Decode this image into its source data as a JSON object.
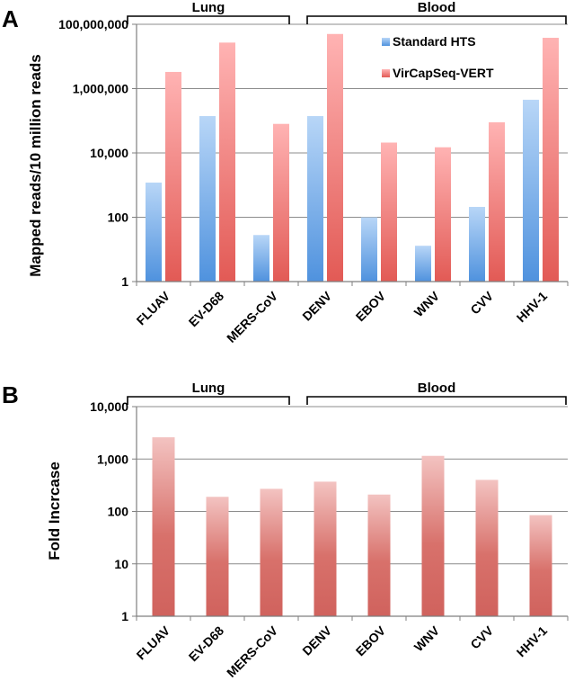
{
  "chart_data": [
    {
      "panel_label": "A",
      "type": "bar",
      "scale": "log10",
      "ylabel": "Mapped reads/10 million reads",
      "ylim": [
        1,
        100000000
      ],
      "yticks": [
        "1",
        "100",
        "10,000",
        "1,000,000",
        "100,000,000"
      ],
      "ytick_values": [
        1,
        100,
        10000,
        1000000,
        100000000
      ],
      "categories": [
        "FLUAV",
        "EV-D68",
        "MERS-CoV",
        "DENV",
        "EBOV",
        "WNV",
        "CVV",
        "HHV-1"
      ],
      "series": [
        {
          "name": "Standard HTS",
          "color": "#5b9bd5",
          "values": [
            1200,
            140000,
            28,
            140000,
            100,
            13,
            210,
            450000
          ]
        },
        {
          "name": "VirCapSeq-VERT",
          "color": "#e0605c",
          "values": [
            3300000,
            27000000,
            80000,
            50000000,
            21000,
            15000,
            90000,
            38000000
          ]
        }
      ],
      "groups": [
        {
          "label": "Lung",
          "start_category": "FLUAV",
          "end_category": "MERS-CoV"
        },
        {
          "label": "Blood",
          "start_category": "DENV",
          "end_category": "HHV-1"
        }
      ],
      "legend": "top-right"
    },
    {
      "panel_label": "B",
      "type": "bar",
      "scale": "log10",
      "ylabel": "Fold Incrcase",
      "ylim": [
        1,
        10000
      ],
      "yticks": [
        "1",
        "10",
        "100",
        "1,000",
        "10,000"
      ],
      "ytick_values": [
        1,
        10,
        100,
        1000,
        10000
      ],
      "categories": [
        "FLUAV",
        "EV-D68",
        "MERS-CoV",
        "DENV",
        "EBOV",
        "WNV",
        "CVV",
        "HHV-1"
      ],
      "series": [
        {
          "name": "Fold increase",
          "color": "#e0605c",
          "values": [
            2600,
            190,
            270,
            370,
            210,
            1150,
            400,
            85
          ]
        }
      ],
      "groups": [
        {
          "label": "Lung",
          "start_category": "FLUAV",
          "end_category": "MERS-CoV"
        },
        {
          "label": "Blood",
          "start_category": "DENV",
          "end_category": "HHV-1"
        }
      ]
    }
  ]
}
